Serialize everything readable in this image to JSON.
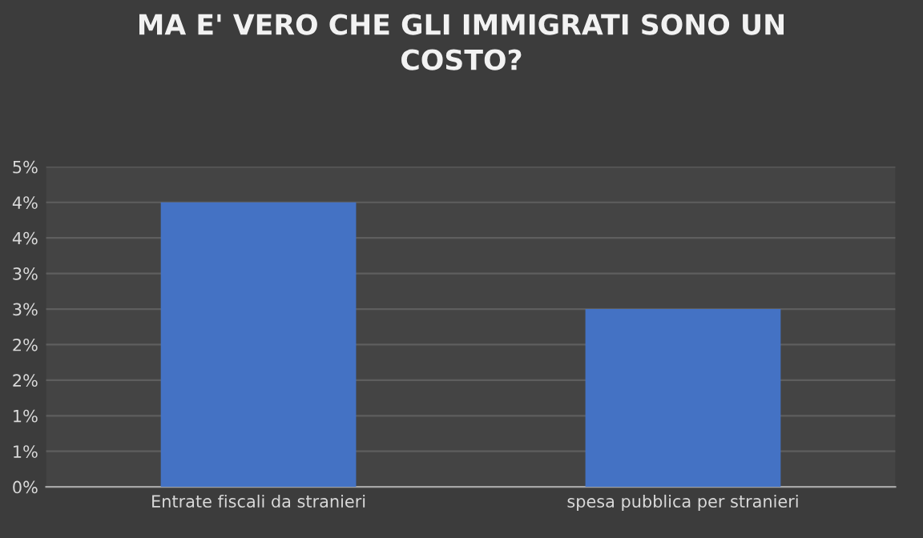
{
  "chart_data": {
    "type": "bar",
    "title": "MA E' VERO CHE GLI IMMIGRATI SONO UN\nCOSTO?",
    "categories": [
      "Entrate fiscali da stranieri",
      "spesa pubblica per stranieri"
    ],
    "values": [
      4.0,
      2.5
    ],
    "color": "#4472c4",
    "ylim": [
      0,
      4.5
    ],
    "yticks": [
      {
        "value": 0,
        "label": "0%"
      },
      {
        "value": 0.5,
        "label": "1%"
      },
      {
        "value": 1.0,
        "label": "1%"
      },
      {
        "value": 1.5,
        "label": "2%"
      },
      {
        "value": 2.0,
        "label": "2%"
      },
      {
        "value": 2.5,
        "label": "3%"
      },
      {
        "value": 3.0,
        "label": "3%"
      },
      {
        "value": 3.5,
        "label": "4%"
      },
      {
        "value": 4.0,
        "label": "4%"
      },
      {
        "value": 4.5,
        "label": "5%"
      }
    ],
    "grid": "y"
  }
}
